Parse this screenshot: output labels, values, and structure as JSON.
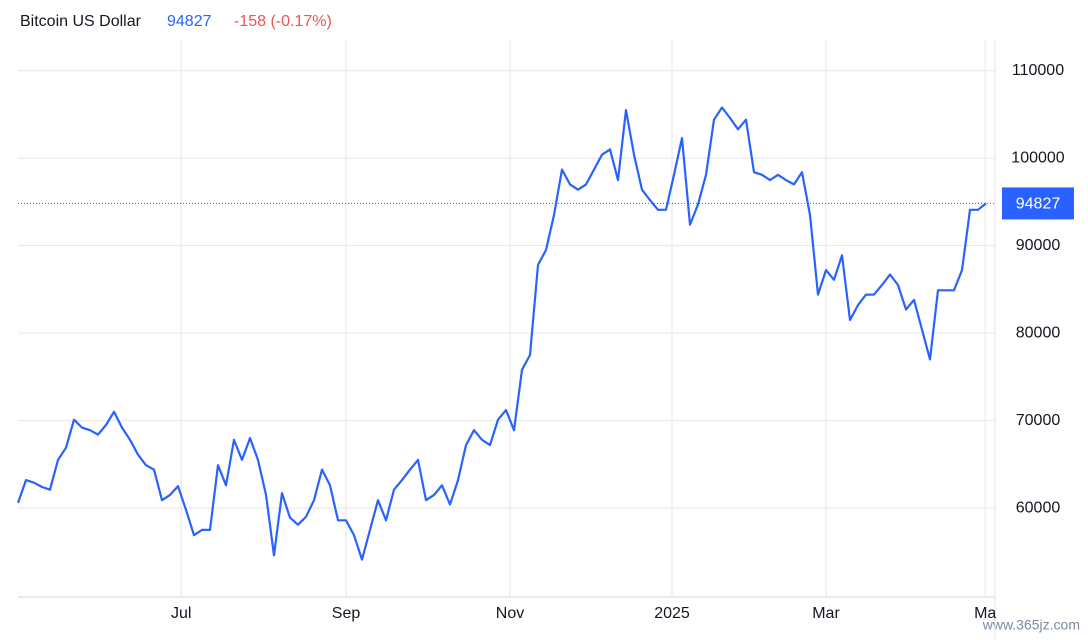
{
  "chart_data": {
    "type": "line",
    "title": "Bitcoin US Dollar",
    "change_label": "-158 (-0.17%)",
    "watermark": "www.365jz.com",
    "color": "#2962ff",
    "values": [
      60600,
      63200,
      62900,
      62400,
      62100,
      65500,
      66900,
      70100,
      69200,
      68900,
      68400,
      69500,
      71000,
      69200,
      67800,
      66100,
      64900,
      64400,
      60900,
      61500,
      62500,
      59800,
      56900,
      57500,
      57500,
      64900,
      62600,
      67800,
      65500,
      68000,
      65500,
      61500,
      54600,
      61700,
      58900,
      58100,
      59000,
      60900,
      64400,
      62600,
      58600,
      58600,
      56900,
      54100,
      57500,
      60900,
      58600,
      62100,
      63200,
      64400,
      65500,
      60900,
      61500,
      62600,
      60400,
      63200,
      67200,
      68900,
      67800,
      67200,
      70100,
      71200,
      68900,
      75800,
      77500,
      87800,
      89500,
      93500,
      98700,
      97000,
      96400,
      97000,
      98700,
      100400,
      101000,
      97500,
      105500,
      100400,
      96400,
      95200,
      94100,
      94100,
      98100,
      102300,
      92400,
      94700,
      98100,
      104400,
      105800,
      104600,
      103300,
      104400,
      98400,
      98100,
      97500,
      98100,
      97500,
      97000,
      98400,
      93500,
      84400,
      87200,
      86100,
      88900,
      81500,
      83200,
      84400,
      84400,
      85500,
      86700,
      85500,
      82700,
      83800,
      80400,
      77000,
      84900,
      84900,
      84900,
      87200,
      94100,
      94100,
      94827
    ],
    "xlim": [
      0,
      121.5
    ],
    "xticks": [
      {
        "value": 20.4,
        "label": "Jul"
      },
      {
        "value": 41,
        "label": "Sep"
      },
      {
        "value": 61.5,
        "label": "Nov"
      },
      {
        "value": 81.75,
        "label": "2025"
      },
      {
        "value": 101,
        "label": "Mar"
      },
      {
        "value": 120.9,
        "label": "Ma"
      }
    ],
    "ylim": [
      50000,
      115000
    ],
    "yticks": [
      60000,
      70000,
      80000,
      90000,
      100000,
      110000
    ],
    "grid": true
  }
}
